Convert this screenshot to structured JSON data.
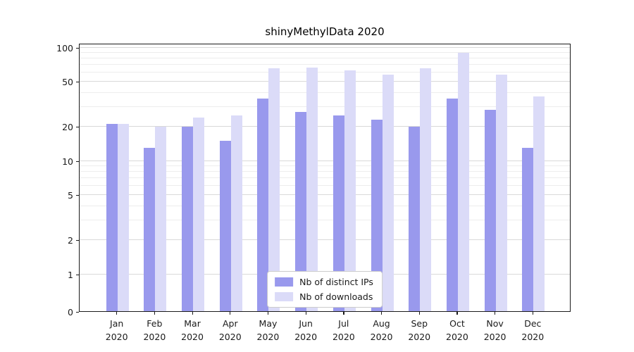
{
  "chart_data": {
    "type": "bar",
    "title": "shinyMethylData 2020",
    "x_tick_year": "2020",
    "categories": [
      "Jan",
      "Feb",
      "Mar",
      "Apr",
      "May",
      "Jun",
      "Jul",
      "Aug",
      "Sep",
      "Oct",
      "Nov",
      "Dec"
    ],
    "series": [
      {
        "name": "Nb of distinct IPs",
        "color": "#9999ed",
        "values": [
          21,
          13,
          20,
          15,
          35,
          27,
          25,
          23,
          20,
          35,
          28,
          13
        ]
      },
      {
        "name": "Nb of downloads",
        "color": "#dbdbf8",
        "values": [
          21,
          20,
          24,
          25,
          65,
          66,
          62,
          57,
          65,
          89,
          57,
          37
        ]
      }
    ],
    "yaxis": {
      "scale": "symlog",
      "ticks": [
        0,
        1,
        2,
        5,
        10,
        20,
        50,
        100
      ],
      "minor_ticks": [
        3,
        4,
        6,
        7,
        8,
        9,
        30,
        40,
        60,
        70,
        80,
        90
      ],
      "range": [
        0,
        110
      ]
    },
    "grid": true,
    "legend_position": "lower center"
  },
  "colors": {
    "axis": "#1a1a1a",
    "grid_major": "#d9d9d9",
    "grid_minor": "#ededed",
    "background": "#ffffff",
    "legend_border": "#cccccc"
  }
}
